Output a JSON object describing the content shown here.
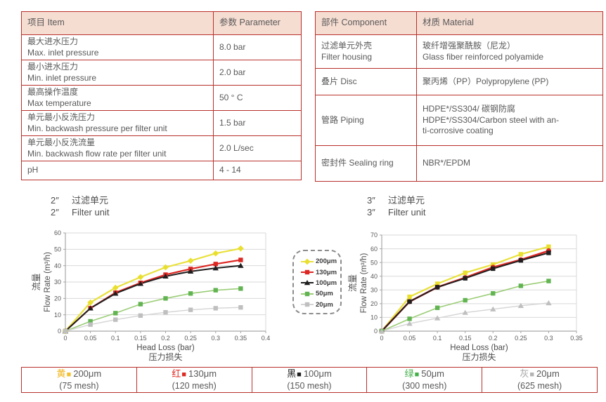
{
  "colors": {
    "accent": "#b8302b",
    "header_bg": "#f6ddd2",
    "text": "#595959",
    "grid": "#d9d9d9",
    "axis": "#a6a6a6",
    "axis_text": "#595959",
    "label_text": "#4d4d4d"
  },
  "spec_table": {
    "headers": [
      "项目 Item",
      "参数 Parameter"
    ],
    "rows": [
      {
        "item": [
          "最大进水压力",
          "Max. inlet pressure"
        ],
        "value": "8.0 bar"
      },
      {
        "item": [
          "最小进水压力",
          "Min. inlet pressure"
        ],
        "value": "2.0 bar"
      },
      {
        "item": [
          "最高操作温度",
          "Max temperature"
        ],
        "value": "50 ° C"
      },
      {
        "item": [
          "单元最小反洗压力",
          "Min. backwash pressure per filter unit"
        ],
        "value": "1.5 bar"
      },
      {
        "item": [
          "单元最小反洗流量",
          "Min. backwash flow rate per filter unit"
        ],
        "value": "2.0 L/sec"
      },
      {
        "item": [
          "pH"
        ],
        "value": "4 - 14"
      }
    ]
  },
  "material_table": {
    "headers": [
      "部件 Component",
      "材质 Material"
    ],
    "rows": [
      {
        "component": [
          "过滤单元外壳",
          "Filter housing"
        ],
        "material": [
          "玻纤增强聚酰胺（尼龙）",
          "Glass fiber reinforced polyamide"
        ]
      },
      {
        "component": [
          "叠片 Disc"
        ],
        "material": [
          "聚丙烯（PP）Polypropylene (PP)"
        ]
      },
      {
        "component": [
          "管路 Piping"
        ],
        "material": [
          "HDPE*/SS304/ 碳钢防腐",
          "HDPE*/SS304/Carbon steel with an-",
          "ti-corrosive coating"
        ]
      },
      {
        "component": [
          "密封件 Sealing ring"
        ],
        "material": [
          "NBR*/EPDM"
        ]
      }
    ]
  },
  "legend_box": {
    "items": [
      {
        "label": "200μm",
        "color": "#e9df2e",
        "line_color": "#e9e13c",
        "marker": "diamond"
      },
      {
        "label": "130μm",
        "color": "#dc2723",
        "line_color": "#dc2723",
        "marker": "square"
      },
      {
        "label": "100μm",
        "color": "#1f1f1f",
        "line_color": "#1f1f1f",
        "marker": "triangle"
      },
      {
        "label": "50μm",
        "color": "#62b452",
        "line_color": "#9bcd77",
        "marker": "square"
      },
      {
        "label": "20μm",
        "color": "#bfbfbf",
        "line_color": "#d4d4d4",
        "marker": "square"
      }
    ]
  },
  "chart_data": [
    {
      "type": "line",
      "name": "flow-chart-2inch",
      "title": {
        "mark": "2″",
        "zh": "过滤单元",
        "en": "Filter unit"
      },
      "xlabel": "Head Loss (bar)",
      "xlabel_zh": "压力损失",
      "ylabel": "Flow Rate (m³/h)",
      "ylabel_zh": "流量",
      "xlim": [
        0,
        0.4
      ],
      "ylim": [
        0,
        60
      ],
      "xticks": [
        0,
        0.05,
        0.1,
        0.15,
        0.2,
        0.25,
        0.3,
        0.35,
        0.4
      ],
      "xtick_labels": [
        "0",
        "0.05",
        "0.1",
        "0.15",
        "0.2",
        "0.25",
        "0.3",
        "0.35",
        "0.4"
      ],
      "yticks": [
        0,
        10,
        20,
        30,
        40,
        50,
        60
      ],
      "x": [
        0,
        0.05,
        0.1,
        0.15,
        0.2,
        0.25,
        0.3,
        0.35
      ],
      "series": [
        {
          "name": "200μm",
          "color": "#e9df2e",
          "line_color": "#e9e13c",
          "marker": "diamond",
          "width": 2.2,
          "values": [
            0,
            17.5,
            26.5,
            33,
            39,
            43,
            47.5,
            50.5
          ]
        },
        {
          "name": "130μm",
          "color": "#dc2723",
          "line_color": "#dc2723",
          "marker": "square",
          "width": 2.2,
          "values": [
            0,
            14,
            23.5,
            29.5,
            34.5,
            38,
            41,
            43.5
          ]
        },
        {
          "name": "100μm",
          "color": "#1f1f1f",
          "line_color": "#1f1f1f",
          "marker": "triangle",
          "width": 2,
          "values": [
            0,
            14,
            23,
            29,
            33.5,
            36.5,
            38.5,
            40
          ]
        },
        {
          "name": "50μm",
          "color": "#62b452",
          "line_color": "#9bcd77",
          "marker": "square",
          "width": 1.6,
          "values": [
            0,
            6,
            11,
            16.5,
            20,
            23,
            25,
            26
          ]
        },
        {
          "name": "20μm",
          "color": "#bfbfbf",
          "line_color": "#d4d4d4",
          "marker": "square",
          "width": 1.4,
          "values": [
            0,
            4,
            7,
            9.5,
            11.5,
            13,
            14,
            14.5
          ]
        }
      ],
      "legend_position": "center-right-dashed-box",
      "grid": true
    },
    {
      "type": "line",
      "name": "flow-chart-3inch",
      "title": {
        "mark": "3″",
        "zh": "过滤单元",
        "en": "Filter unit"
      },
      "xlabel": "Head Loss (bar)",
      "xlabel_zh": "压力损失",
      "ylabel": "Flow Rate (m³/h)",
      "ylabel_zh": "流量",
      "xlim": [
        0,
        0.35
      ],
      "ylim": [
        0,
        70
      ],
      "xticks": [
        0,
        0.05,
        0.1,
        0.15,
        0.2,
        0.25,
        0.3,
        0.35
      ],
      "xtick_labels": [
        "0",
        "0.05",
        "0.1",
        "0.15",
        "0.2",
        "0.25",
        "0.3",
        "0.35"
      ],
      "yticks": [
        0,
        10,
        20,
        30,
        40,
        50,
        60,
        70
      ],
      "x": [
        0,
        0.05,
        0.1,
        0.15,
        0.2,
        0.25,
        0.3
      ],
      "series": [
        {
          "name": "200μm",
          "color": "#e9df2e",
          "line_color": "#e9e13c",
          "marker": "square",
          "width": 2.2,
          "values": [
            0,
            25,
            34.5,
            42.5,
            48.5,
            56,
            61.5
          ]
        },
        {
          "name": "130μm",
          "color": "#dc2723",
          "line_color": "#dc2723",
          "marker": "circle",
          "width": 2.6,
          "values": [
            0,
            21.5,
            32,
            39,
            46.5,
            52,
            58.5
          ]
        },
        {
          "name": "100μm",
          "color": "#1f1f1f",
          "line_color": "#1f1f1f",
          "marker": "square",
          "width": 2,
          "values": [
            0,
            21.5,
            32,
            38.5,
            45.5,
            51.5,
            57
          ]
        },
        {
          "name": "50μm",
          "color": "#62b452",
          "line_color": "#9bcd77",
          "marker": "square",
          "width": 1.6,
          "values": [
            0,
            9,
            17,
            22.5,
            27.5,
            33,
            36.5
          ]
        },
        {
          "name": "20μm",
          "color": "#bfbfbf",
          "line_color": "#d4d4d4",
          "marker": "triangle",
          "width": 1.4,
          "values": [
            0,
            5.5,
            9.5,
            13.5,
            16,
            18.5,
            20.5
          ]
        }
      ],
      "legend_position": "center-left-dashed-box",
      "grid": true
    }
  ],
  "bottom_legend": {
    "cells": [
      {
        "zh": "黄",
        "size": "200μm",
        "mesh": "(75 mesh)",
        "char_color": "#eeb111",
        "swatch_color": "#f2c12e"
      },
      {
        "zh": "红",
        "size": "130μm",
        "mesh": "(120 mesh)",
        "char_color": "#e02a21",
        "swatch_color": "#dd2a22"
      },
      {
        "zh": "黑",
        "size": "100μm",
        "mesh": "(150 mesh)",
        "char_color": "#1f1f1f",
        "swatch_color": "#1f1f1f"
      },
      {
        "zh": "绿",
        "size": "50μm",
        "mesh": "(300 mesh)",
        "char_color": "#43b049",
        "swatch_color": "#43b049"
      },
      {
        "zh": "灰",
        "size": "20μm",
        "mesh": "(625 mesh)",
        "char_color": "#a6a6a6",
        "swatch_color": "#b3b3b3"
      }
    ]
  }
}
